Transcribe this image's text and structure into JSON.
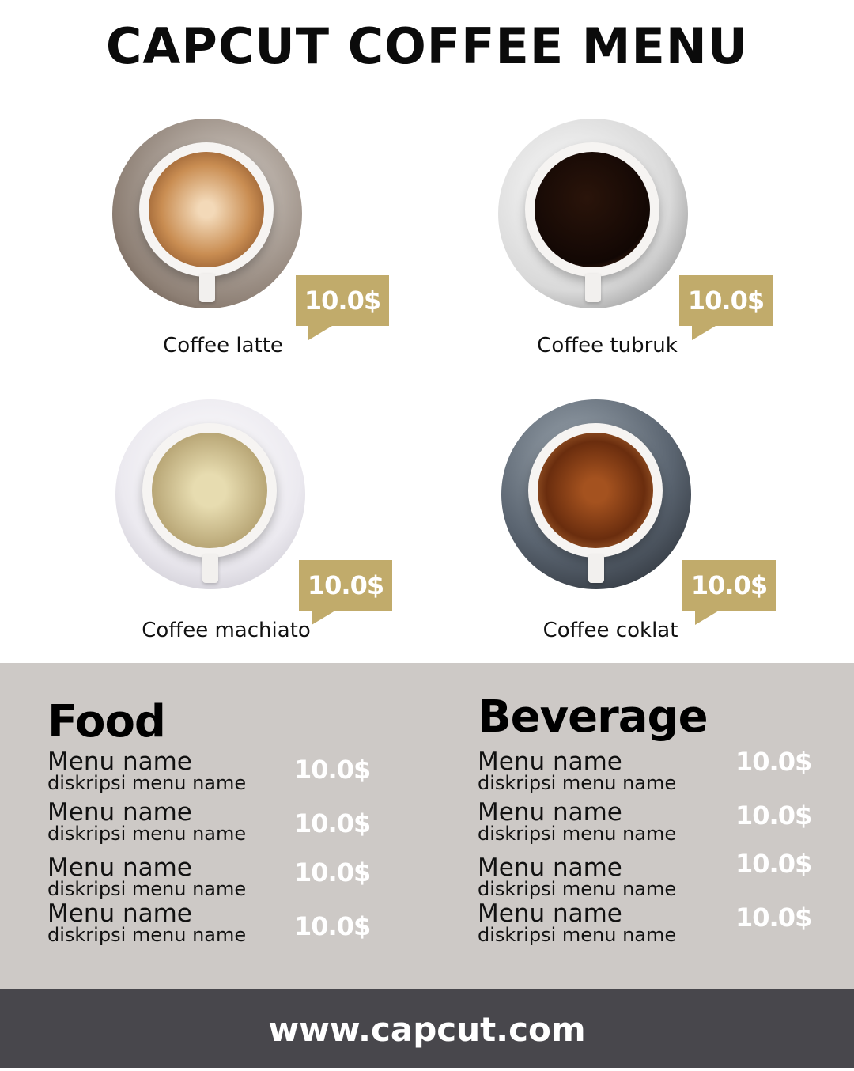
{
  "title": "CAPCUT COFFEE MENU",
  "accent_color": "#c1ab6b",
  "coffees": [
    {
      "name": "Coffee latte",
      "price": "10.0$"
    },
    {
      "name": "Coffee tubruk",
      "price": "10.0$"
    },
    {
      "name": "Coffee machiato",
      "price": "10.0$"
    },
    {
      "name": "Coffee coklat",
      "price": "10.0$"
    }
  ],
  "food": {
    "heading": "Food",
    "items": [
      {
        "name": "Menu name",
        "desc": "diskripsi menu name",
        "price": "10.0$"
      },
      {
        "name": "Menu name",
        "desc": "diskripsi menu name",
        "price": "10.0$"
      },
      {
        "name": "Menu name",
        "desc": "diskripsi menu name",
        "price": "10.0$"
      },
      {
        "name": "Menu name",
        "desc": "diskripsi menu name",
        "price": "10.0$"
      }
    ]
  },
  "beverage": {
    "heading": "Beverage",
    "items": [
      {
        "name": "Menu name",
        "desc": "diskripsi menu name",
        "price": "10.0$"
      },
      {
        "name": "Menu name",
        "desc": "diskripsi menu name",
        "price": "10.0$"
      },
      {
        "name": "Menu name",
        "desc": "diskripsi menu name",
        "price": "10.0$"
      },
      {
        "name": "Menu name",
        "desc": "diskripsi menu name",
        "price": "10.0$"
      }
    ]
  },
  "footer": {
    "url": "www.capcut.com"
  }
}
